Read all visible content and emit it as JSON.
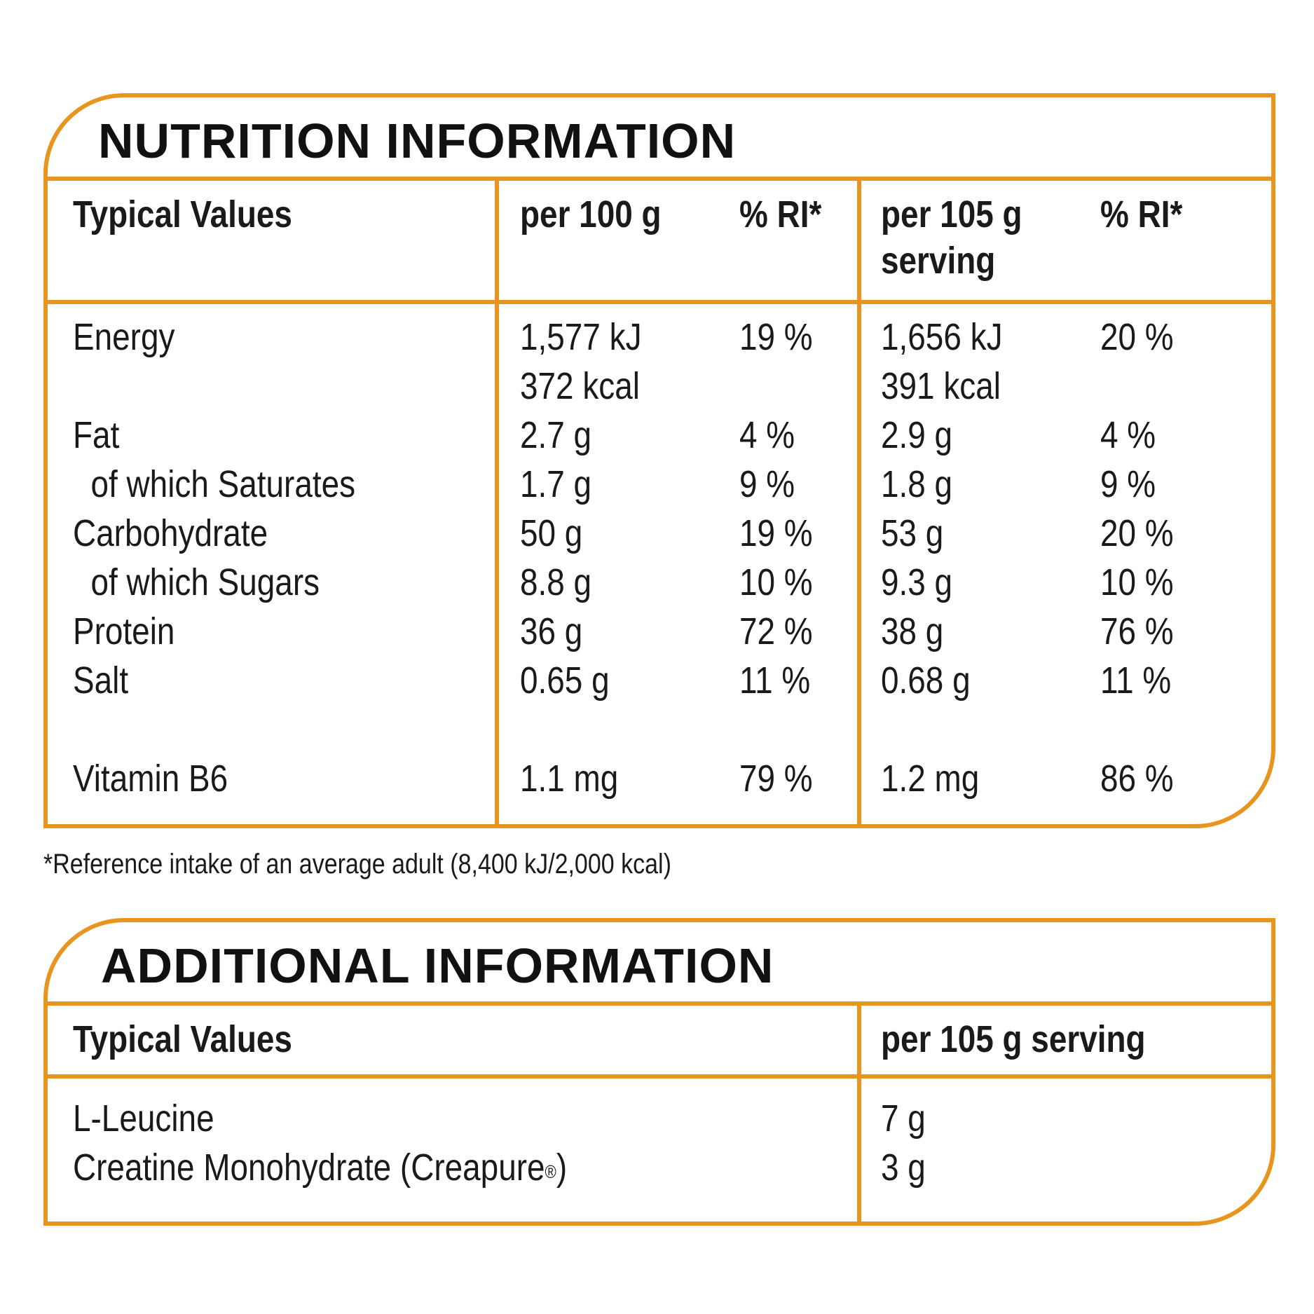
{
  "colors": {
    "border": "#e8951f",
    "text": "#1a1a1a"
  },
  "nutrition": {
    "title": "NUTRITION INFORMATION",
    "headers": {
      "typical": "Typical Values",
      "per100": "per 100 g",
      "ri1": "% RI*",
      "per105_line1": "per 105 g",
      "per105_line2": "serving",
      "ri2": "% RI*"
    },
    "rows": [
      {
        "name": "Energy",
        "per100": "1,577 kJ",
        "ri100": "19 %",
        "per105": "1,656 kJ",
        "ri105": "20 %"
      },
      {
        "name": "",
        "per100": "372 kcal",
        "ri100": "",
        "per105": "391 kcal",
        "ri105": ""
      },
      {
        "name": "Fat",
        "per100": "2.7 g",
        "ri100": "4 %",
        "per105": "2.9 g",
        "ri105": "4 %"
      },
      {
        "name": "of which Saturates",
        "per100": "1.7 g",
        "ri100": "9 %",
        "per105": "1.8 g",
        "ri105": "9 %"
      },
      {
        "name": "Carbohydrate",
        "per100": "50 g",
        "ri100": "19 %",
        "per105": "53 g",
        "ri105": "20 %"
      },
      {
        "name": "of which Sugars",
        "per100": "8.8 g",
        "ri100": "10 %",
        "per105": "9.3 g",
        "ri105": "10 %"
      },
      {
        "name": "Protein",
        "per100": "36 g",
        "ri100": "72 %",
        "per105": "38 g",
        "ri105": "76 %"
      },
      {
        "name": "Salt",
        "per100": "0.65 g",
        "ri100": "11 %",
        "per105": "0.68 g",
        "ri105": "11 %"
      },
      {
        "name": "Vitamin B6",
        "per100": "1.1 mg",
        "ri100": "79 %",
        "per105": "1.2 mg",
        "ri105": "86 %"
      }
    ]
  },
  "footnote": "*Reference intake of an average adult (8,400 kJ/2,000 kcal)",
  "additional": {
    "title": "ADDITIONAL INFORMATION",
    "headers": {
      "typical": "Typical Values",
      "per105": "per 105 g serving"
    },
    "rows": [
      {
        "name": "L-Leucine",
        "value": "7 g"
      },
      {
        "name": "Creatine Monohydrate (Creapure",
        "sup": "®",
        "suffix": ")",
        "value": "3 g"
      }
    ]
  }
}
